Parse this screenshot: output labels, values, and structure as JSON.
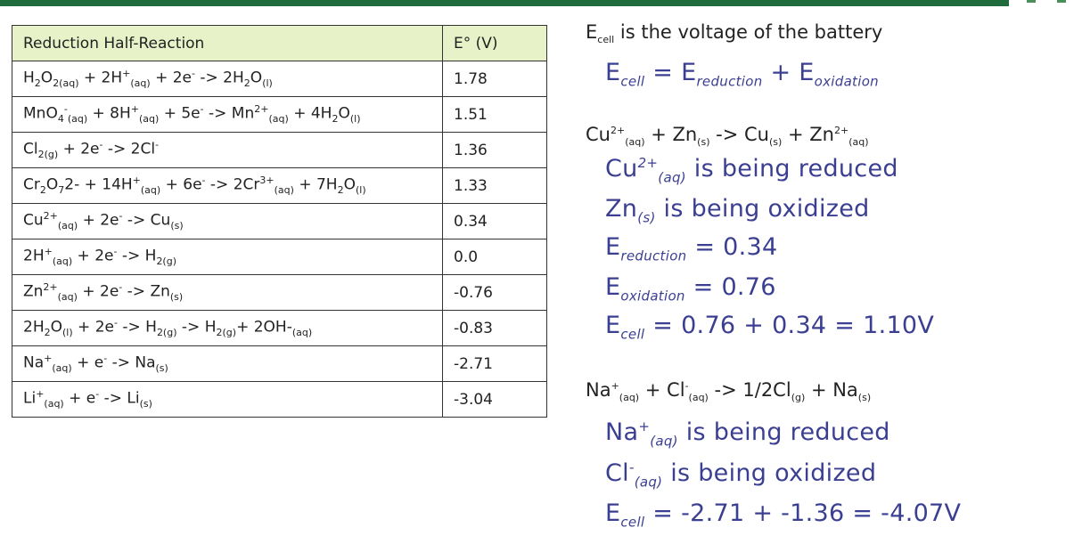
{
  "table": {
    "header": [
      "Reduction Half-Reaction",
      "E° (V)"
    ],
    "rows": [
      {
        "reaction": [
          "H",
          {
            "sub": "2"
          },
          "O",
          {
            "sub": "2(aq)"
          },
          " + 2H",
          {
            "sup": "+"
          },
          {
            "sub": "(aq)"
          },
          " + 2e",
          {
            "sup": "-"
          },
          " -> 2H",
          {
            "sub": "2"
          },
          "O",
          {
            "sub": "(l)"
          }
        ],
        "e": "1.78"
      },
      {
        "reaction": [
          "MnO",
          {
            "sub": "4"
          },
          {
            "sup": "-"
          },
          {
            "sub": "(aq)"
          },
          " + 8H",
          {
            "sup": "+"
          },
          {
            "sub": "(aq)"
          },
          " + 5e",
          {
            "sup": "-"
          },
          " -> Mn",
          {
            "sup": "2+"
          },
          {
            "sub": "(aq)"
          },
          " + 4H",
          {
            "sub": "2"
          },
          "O",
          {
            "sub": "(l)"
          }
        ],
        "e": "1.51"
      },
      {
        "reaction": [
          "Cl",
          {
            "sub": "2(g)"
          },
          " + 2e",
          {
            "sup": "-"
          },
          " -> 2Cl",
          {
            "sup": "-"
          }
        ],
        "e": "1.36"
      },
      {
        "reaction": [
          "Cr",
          {
            "sub": "2"
          },
          "O",
          {
            "sub": "7"
          },
          "2- + 14H",
          {
            "sup": "+"
          },
          {
            "sub": "(aq)"
          },
          " + 6e",
          {
            "sup": "-"
          },
          " -> 2Cr",
          {
            "sup": "3+"
          },
          {
            "sub": "(aq)"
          },
          " + 7H",
          {
            "sub": "2"
          },
          "O",
          {
            "sub": "(l)"
          }
        ],
        "e": "1.33"
      },
      {
        "reaction": [
          "Cu",
          {
            "sup": "2+"
          },
          {
            "sub": "(aq)"
          },
          " + 2e",
          {
            "sup": "-"
          },
          " -> Cu",
          {
            "sub": "(s)"
          }
        ],
        "e": "0.34"
      },
      {
        "reaction": [
          "2H",
          {
            "sup": "+"
          },
          {
            "sub": "(aq)"
          },
          " + 2e",
          {
            "sup": "-"
          },
          " -> H",
          {
            "sub": "2(g)"
          }
        ],
        "e": "0.0"
      },
      {
        "reaction": [
          "Zn",
          {
            "sup": "2+"
          },
          {
            "sub": "(aq)"
          },
          " + 2e",
          {
            "sup": "-"
          },
          " -> Zn",
          {
            "sub": "(s)"
          }
        ],
        "e": "-0.76"
      },
      {
        "reaction": [
          "2H",
          {
            "sub": "2"
          },
          "O",
          {
            "sub": "(l)"
          },
          " + 2e",
          {
            "sup": "-"
          },
          " -> H",
          {
            "sub": "2(g)"
          },
          " -> H",
          {
            "sub": "2(g)"
          },
          "+ 2OH-",
          {
            "sub": "(aq)"
          }
        ],
        "e": "-0.83"
      },
      {
        "reaction": [
          "Na",
          {
            "sup": "+"
          },
          {
            "sub": "(aq)"
          },
          " + e",
          {
            "sup": "-"
          },
          " -> Na",
          {
            "sub": "(s)"
          }
        ],
        "e": "-2.71"
      },
      {
        "reaction": [
          "Li",
          {
            "sup": "+"
          },
          {
            "sub": "(aq)"
          },
          " + e",
          {
            "sup": "-"
          },
          " -> Li",
          {
            "sub": "(s)"
          }
        ],
        "e": "-3.04"
      }
    ]
  },
  "notes": [
    [
      "E",
      {
        "sub": "cell"
      },
      " is the voltage of the battery"
    ],
    [
      "E",
      {
        "sub": "cell"
      },
      " = E",
      {
        "sub": "reduction"
      },
      " + E",
      {
        "sub": "oxidation"
      }
    ],
    [
      "Cu",
      {
        "sup": "2+"
      },
      {
        "sub": "(aq)"
      },
      " + Zn",
      {
        "sub": "(s)"
      },
      " -> Cu",
      {
        "sub": "(s)"
      },
      " + Zn",
      {
        "sup": "2+"
      },
      {
        "sub": "(aq)"
      }
    ],
    [
      "Cu",
      {
        "sup": "2+"
      },
      {
        "sub": "(aq)"
      },
      " is being reduced"
    ],
    [
      "Zn",
      {
        "sub": "(s)"
      },
      " is being oxidized"
    ],
    [
      "E",
      {
        "sub": "reduction"
      },
      " = 0.34"
    ],
    [
      "E",
      {
        "sub": "oxidation"
      },
      " = 0.76"
    ],
    [
      "E",
      {
        "sub": "cell"
      },
      " = 0.76 + 0.34 = 1.10V"
    ],
    [
      "Na",
      {
        "sup": "+"
      },
      {
        "sub": "(aq)"
      },
      " + Cl",
      {
        "sup": "-"
      },
      {
        "sub": "(aq)"
      },
      " -> 1/2Cl",
      {
        "sub": "(g)"
      },
      " + Na",
      {
        "sub": "(s)"
      }
    ],
    [
      "Na",
      {
        "sup": "+"
      },
      {
        "sub": "(aq)"
      },
      " is being reduced"
    ],
    [
      "Cl",
      {
        "sup": "-"
      },
      {
        "sub": "(aq)"
      },
      " is being oxidized"
    ],
    [
      "E",
      {
        "sub": "cell"
      },
      " = -2.71 + -1.36 = -4.07V"
    ]
  ]
}
